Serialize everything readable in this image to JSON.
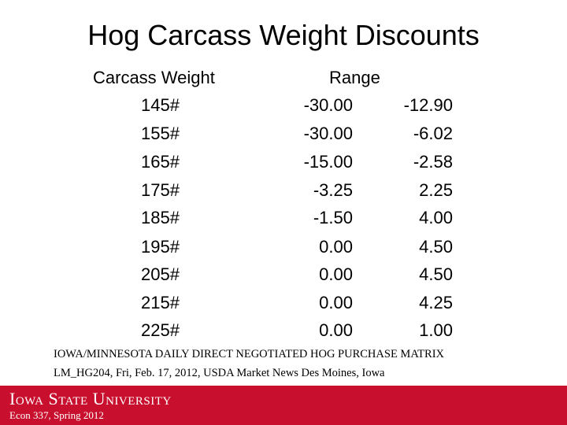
{
  "header": {
    "title": "Hog Carcass Weight Discounts"
  },
  "table": {
    "columns": [
      "Carcass Weight",
      "Range"
    ],
    "rows": [
      [
        "145#",
        "-30.00",
        "-12.90"
      ],
      [
        "155#",
        "-30.00",
        "-6.02"
      ],
      [
        "165#",
        "-15.00",
        "-2.58"
      ],
      [
        "175#",
        "-3.25",
        "2.25"
      ],
      [
        "185#",
        "-1.50",
        "4.00"
      ],
      [
        "195#",
        "0.00",
        "4.50"
      ],
      [
        "205#",
        "0.00",
        "4.50"
      ],
      [
        "215#",
        "0.00",
        "4.25"
      ],
      [
        "225#",
        "0.00",
        "1.00"
      ]
    ]
  },
  "source": [
    "IOWA/MINNESOTA DAILY DIRECT NEGOTIATED HOG PURCHASE MATRIX",
    "LM_HG204, Fri, Feb. 17, 2012, USDA Market News Des Moines, Iowa"
  ],
  "footer": {
    "university": "Iowa State University",
    "course": "Econ 337, Spring 2012"
  }
}
